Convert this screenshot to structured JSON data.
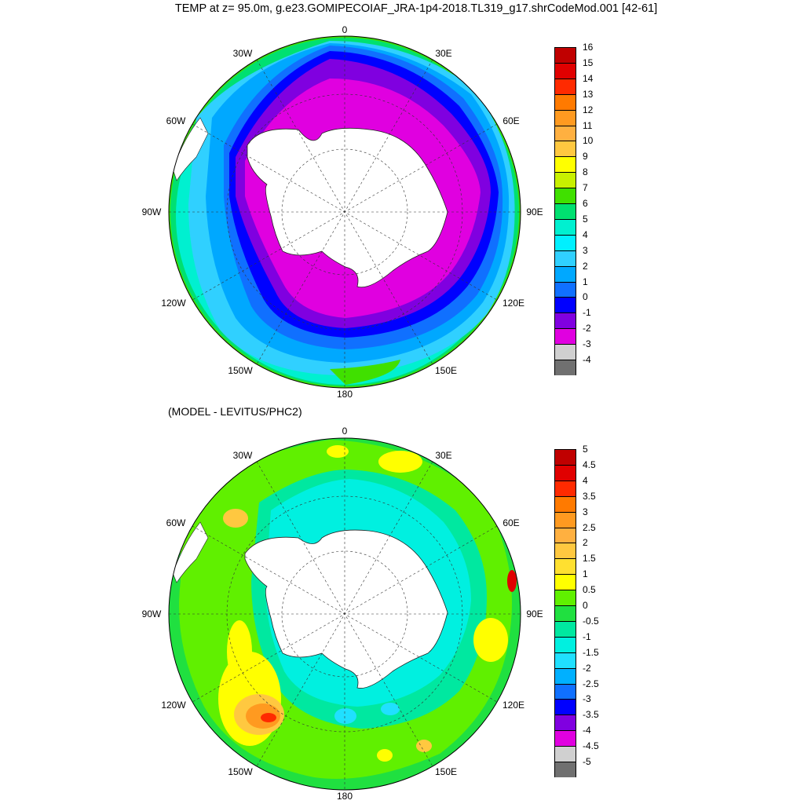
{
  "title": "TEMP at z=  95.0m, g.e23.GOMIPECOIAF_JRA-1p4-2018.TL319_g17.shrCodeMod.001 [42-61]",
  "subtitle": "(MODEL - LEVITUS/PHC2)",
  "map_labels": {
    "top": "0",
    "lon_30e": "30E",
    "lon_60e": "60E",
    "lon_90e": "90E",
    "lon_120e": "120E",
    "lon_150e": "150E",
    "bottom": "180",
    "lon_150w": "150W",
    "lon_120w": "120W",
    "lon_90w": "90W",
    "lon_60w": "60W",
    "lon_30w": "30W"
  },
  "colorbar_top": {
    "labels": [
      "16",
      "15",
      "14",
      "13",
      "12",
      "11",
      "10",
      "9",
      "8",
      "7",
      "6",
      "5",
      "4",
      "3",
      "2",
      "1",
      "0",
      "-1",
      "-2",
      "-3",
      "-4"
    ],
    "colors": [
      "#c00000",
      "#e00000",
      "#ff2a00",
      "#ff7a00",
      "#ff9a20",
      "#ffb040",
      "#ffc840",
      "#ffff00",
      "#c8f000",
      "#40e000",
      "#00e070",
      "#00f0d0",
      "#00f0ff",
      "#30d0ff",
      "#00a8ff",
      "#1070ff",
      "#0000ff",
      "#8000e0",
      "#e000e0",
      "#d0d0d0",
      "#707070"
    ]
  },
  "colorbar_bottom": {
    "labels": [
      "5",
      "4.5",
      "4",
      "3.5",
      "3",
      "2.5",
      "2",
      "1.5",
      "1",
      "0.5",
      "0",
      "-0.5",
      "-1",
      "-1.5",
      "-2",
      "-2.5",
      "-3",
      "-3.5",
      "-4",
      "-4.5",
      "-5"
    ],
    "colors": [
      "#c00000",
      "#e00000",
      "#ff2a00",
      "#ff7a00",
      "#ff9a20",
      "#ffb040",
      "#ffc840",
      "#ffe030",
      "#ffff00",
      "#60f000",
      "#20e040",
      "#00e8a0",
      "#00f0e0",
      "#20e0ff",
      "#00b0ff",
      "#1070ff",
      "#0000ff",
      "#8000e0",
      "#e000e0",
      "#d0d0d0",
      "#707070"
    ]
  }
}
